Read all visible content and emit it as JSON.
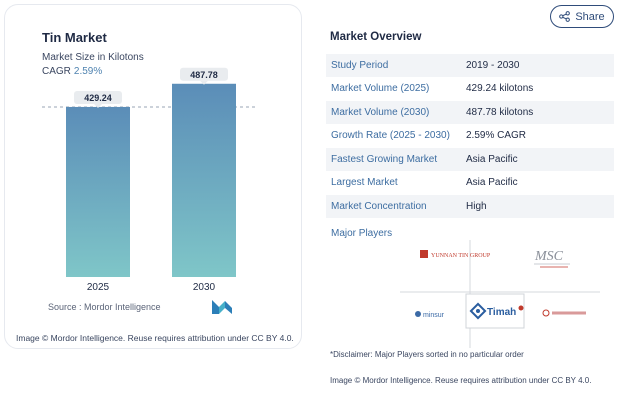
{
  "chart_card": {
    "title": "Tin Market",
    "subtitle": "Market Size in Kilotons",
    "cagr_label": "CAGR",
    "cagr_value": "2.59%",
    "source": "Source :  Mordor Intelligence",
    "credit": "Image © Mordor Intelligence. Reuse requires attribution under CC BY 4.0."
  },
  "chart_data": {
    "type": "bar",
    "categories": [
      "2025",
      "2030"
    ],
    "values": [
      429.24,
      487.78
    ],
    "data_labels": [
      "429.24",
      "487.78"
    ],
    "title": "Tin Market",
    "subtitle": "Market Size in Kilotons",
    "ylim": [
      0,
      520
    ],
    "grid": false,
    "reference_line": "dashed line at 2025 value",
    "colors": {
      "bar_top": "#5b8db8",
      "bar_bottom": "#7fc6c8"
    }
  },
  "share": {
    "label": "Share",
    "icon": "share-icon"
  },
  "overview": {
    "title": "Market Overview",
    "rows": [
      {
        "key": "Study Period",
        "value": "2019 - 2030"
      },
      {
        "key": "Market Volume (2025)",
        "value": "429.24 kilotons"
      },
      {
        "key": "Market Volume (2030)",
        "value": "487.78 kilotons"
      },
      {
        "key": "Growth Rate (2025 - 2030)",
        "value": "2.59% CAGR"
      },
      {
        "key": "Fastest Growing Market",
        "value": "Asia Pacific"
      },
      {
        "key": "Largest Market",
        "value": "Asia Pacific"
      },
      {
        "key": "Market Concentration",
        "value": "High"
      }
    ]
  },
  "players": {
    "title": "Major Players",
    "logos": [
      "YUNNAN TIN GROUP",
      "MSC",
      "minsur",
      "Timah"
    ],
    "disclaimer": "*Disclaimer: Major Players sorted in no particular order",
    "credit": "Image © Mordor Intelligence. Reuse requires attribution under CC BY 4.0."
  },
  "colors": {
    "accent": "#3d6da1",
    "title": "#1f2a44"
  }
}
